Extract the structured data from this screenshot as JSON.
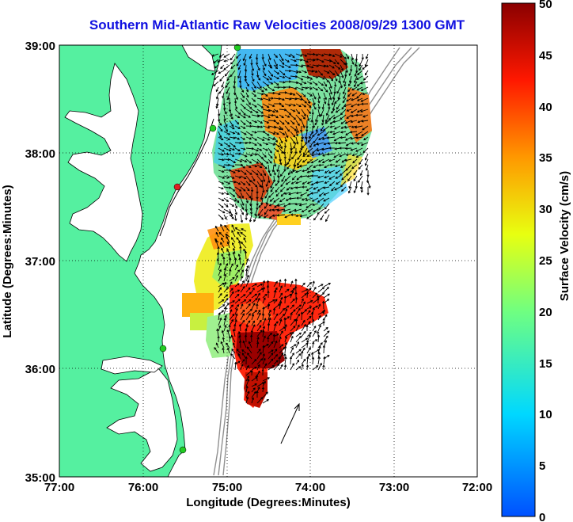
{
  "title": "Southern Mid-Atlantic Raw Velocities 2008/09/29 1300 GMT",
  "xlabel": "Longitude (Degrees:Minutes)",
  "ylabel": "Latitude (Degrees:Minutes)",
  "colorbar_label": "Surface Velocity (cm/s)",
  "x_ticks": [
    "77:00",
    "76:00",
    "75:00",
    "74:00",
    "73:00",
    "72:00"
  ],
  "y_ticks": [
    "39:00",
    "38:00",
    "37:00",
    "36:00",
    "35:00"
  ],
  "colorbar_ticks": [
    "50",
    "45",
    "40",
    "35",
    "30",
    "25",
    "20",
    "15",
    "10",
    "5",
    "0"
  ],
  "colors": {
    "land": "#55f0a0",
    "water": "#ffffff",
    "coast": "#000000",
    "bathymetry": "#909090",
    "station": "#22cc22",
    "station_active": "#dd2222",
    "title": "#1010e0"
  },
  "colorbar_range": [
    0,
    50
  ]
}
